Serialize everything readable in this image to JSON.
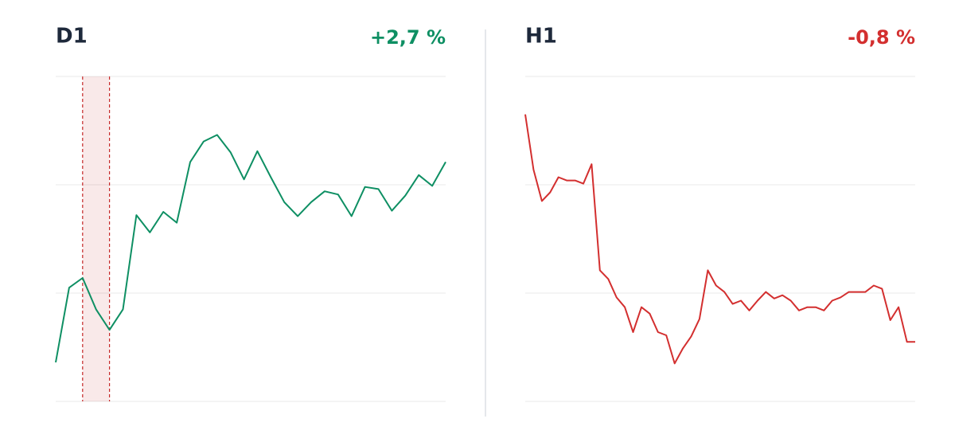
{
  "chart_data": [
    {
      "type": "line",
      "title": "D1",
      "change": "+2,7 %",
      "change_color": "#0e8f63",
      "color": "#0e8f63",
      "values": [
        0.36,
        1.05,
        1.14,
        0.85,
        0.66,
        0.85,
        1.72,
        1.56,
        1.75,
        1.65,
        2.21,
        2.4,
        2.46,
        2.3,
        2.05,
        2.31,
        2.07,
        1.84,
        1.71,
        1.84,
        1.94,
        1.91,
        1.71,
        1.98,
        1.96,
        1.76,
        1.9,
        2.09,
        1.99,
        2.21
      ],
      "ylim": [
        0,
        3
      ],
      "yticks": [
        0,
        1,
        2,
        3
      ],
      "grid": true,
      "highlight": [
        2,
        4
      ],
      "highlight_color": "#c62828"
    },
    {
      "type": "line",
      "title": "H1",
      "change": "-0,8 %",
      "change_color": "#d32f2f",
      "color": "#d32f2f",
      "values": [
        2.65,
        2.14,
        1.85,
        1.93,
        2.07,
        2.04,
        2.04,
        2.01,
        2.19,
        1.21,
        1.13,
        0.96,
        0.87,
        0.64,
        0.87,
        0.81,
        0.64,
        0.61,
        0.35,
        0.49,
        0.6,
        0.76,
        1.21,
        1.07,
        1.01,
        0.9,
        0.93,
        0.84,
        0.93,
        1.01,
        0.95,
        0.98,
        0.93,
        0.84,
        0.87,
        0.87,
        0.84,
        0.93,
        0.96,
        1.01,
        1.01,
        1.01,
        1.07,
        1.04,
        0.75,
        0.87,
        0.55,
        0.55
      ],
      "ylim": [
        0,
        3
      ],
      "yticks": [
        0,
        1,
        2,
        3
      ],
      "grid": true
    }
  ]
}
